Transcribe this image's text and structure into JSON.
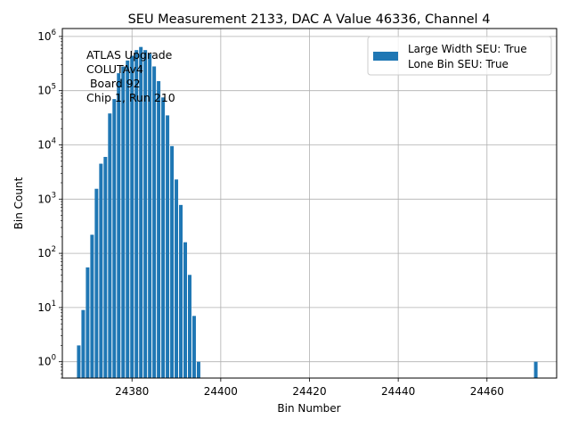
{
  "chart_data": {
    "type": "bar",
    "title": "SEU Measurement 2133, DAC A Value 46336, Channel 4",
    "xlabel": "Bin Number",
    "ylabel": "Bin Count",
    "yscale": "log",
    "xlim": [
      24364.3,
      24475.7
    ],
    "ylim": [
      0.5,
      1400000
    ],
    "grid": true,
    "xticks": [
      24380,
      24400,
      24420,
      24440,
      24460
    ],
    "yticks": [
      {
        "value": 1,
        "base": "10",
        "exp": "0"
      },
      {
        "value": 10,
        "base": "10",
        "exp": "1"
      },
      {
        "value": 100,
        "base": "10",
        "exp": "2"
      },
      {
        "value": 1000,
        "base": "10",
        "exp": "3"
      },
      {
        "value": 10000,
        "base": "10",
        "exp": "4"
      },
      {
        "value": 100000,
        "base": "10",
        "exp": "5"
      },
      {
        "value": 1000000,
        "base": "10",
        "exp": "6"
      }
    ],
    "bar_color": "#1f77b4",
    "bar_width": 0.8,
    "legend": {
      "placement": "top-right",
      "entries": [
        "Large Width SEU: True",
        "Lone Bin SEU: True"
      ]
    },
    "annotation": [
      "ATLAS Upgrade",
      "COLUTAv4",
      " Board 92",
      "Chip 1, Run 210"
    ],
    "bins": [
      {
        "x": 24368,
        "y": 2
      },
      {
        "x": 24369,
        "y": 9
      },
      {
        "x": 24370,
        "y": 55
      },
      {
        "x": 24371,
        "y": 220
      },
      {
        "x": 24372,
        "y": 1550
      },
      {
        "x": 24373,
        "y": 4500
      },
      {
        "x": 24374,
        "y": 6000
      },
      {
        "x": 24375,
        "y": 38000
      },
      {
        "x": 24376,
        "y": 70000
      },
      {
        "x": 24377,
        "y": 210000
      },
      {
        "x": 24378,
        "y": 280000
      },
      {
        "x": 24379,
        "y": 360000
      },
      {
        "x": 24380,
        "y": 440000
      },
      {
        "x": 24381,
        "y": 560000
      },
      {
        "x": 24382,
        "y": 640000
      },
      {
        "x": 24383,
        "y": 560000
      },
      {
        "x": 24384,
        "y": 480000
      },
      {
        "x": 24385,
        "y": 280000
      },
      {
        "x": 24386,
        "y": 150000
      },
      {
        "x": 24387,
        "y": 75000
      },
      {
        "x": 24388,
        "y": 35000
      },
      {
        "x": 24389,
        "y": 9500
      },
      {
        "x": 24390,
        "y": 2300
      },
      {
        "x": 24391,
        "y": 780
      },
      {
        "x": 24392,
        "y": 160
      },
      {
        "x": 24393,
        "y": 40
      },
      {
        "x": 24394,
        "y": 7
      },
      {
        "x": 24395,
        "y": 1
      },
      {
        "x": 24471,
        "y": 1
      }
    ]
  }
}
